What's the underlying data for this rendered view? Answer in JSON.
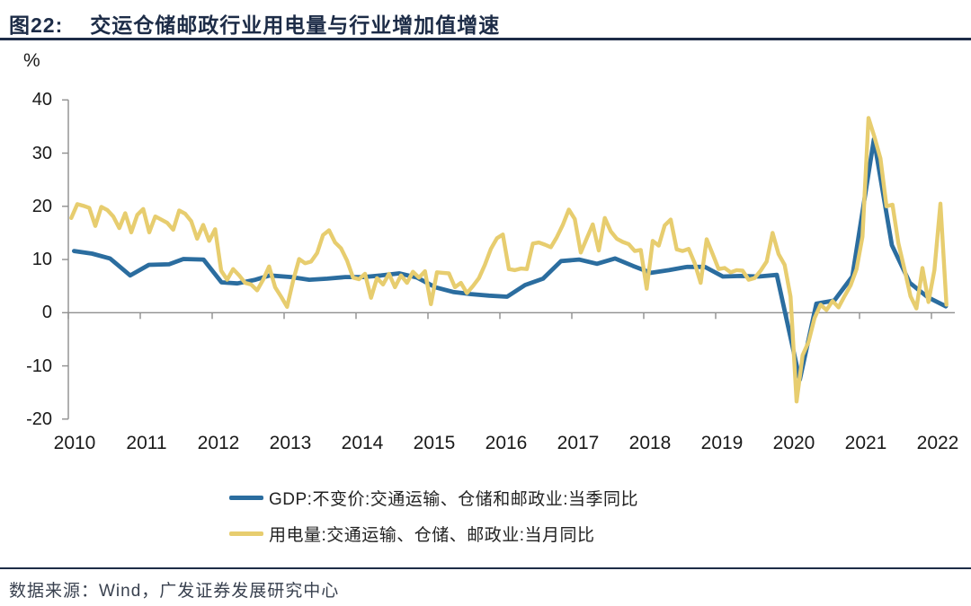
{
  "header": {
    "title_prefix": "图22:",
    "title": "交运仓储邮政行业用电量与行业增加值增速"
  },
  "chart": {
    "unit_label": "%"
  },
  "chart_data": {
    "type": "line",
    "title": "交运仓储邮政行业用电量与行业增加值增速",
    "grid": false,
    "legend_position": "bottom",
    "x_axis": {
      "min": 2010,
      "max": 2022.33,
      "tick_years": [
        2010,
        2011,
        2012,
        2013,
        2014,
        2015,
        2016,
        2017,
        2018,
        2019,
        2020,
        2021,
        2022
      ]
    },
    "y_axis": {
      "min": -20,
      "max": 40,
      "ticks": [
        40,
        30,
        20,
        10,
        0,
        -10,
        -20
      ],
      "unit": "%"
    },
    "series": [
      {
        "name": "GDP:不变价:交通运输、仓储和邮政业:当季同比",
        "color": "#2b6d9f",
        "frequency": "quarterly",
        "points": [
          [
            2010.08,
            11.6
          ],
          [
            2010.33,
            11.1
          ],
          [
            2010.58,
            10.2
          ],
          [
            2010.86,
            7.0
          ],
          [
            2011.12,
            9.0
          ],
          [
            2011.4,
            9.1
          ],
          [
            2011.6,
            10.1
          ],
          [
            2011.88,
            10.0
          ],
          [
            2012.13,
            5.7
          ],
          [
            2012.35,
            5.5
          ],
          [
            2012.6,
            6.2
          ],
          [
            2012.8,
            7.0
          ],
          [
            2013.1,
            6.7
          ],
          [
            2013.35,
            6.2
          ],
          [
            2013.6,
            6.4
          ],
          [
            2013.85,
            6.7
          ],
          [
            2014.1,
            6.7
          ],
          [
            2014.35,
            7.0
          ],
          [
            2014.6,
            7.4
          ],
          [
            2014.85,
            6.6
          ],
          [
            2015.1,
            4.8
          ],
          [
            2015.35,
            3.9
          ],
          [
            2015.6,
            3.5
          ],
          [
            2015.85,
            3.2
          ],
          [
            2016.1,
            3.0
          ],
          [
            2016.35,
            5.2
          ],
          [
            2016.6,
            6.4
          ],
          [
            2016.85,
            9.7
          ],
          [
            2017.1,
            10.0
          ],
          [
            2017.35,
            9.2
          ],
          [
            2017.6,
            10.2
          ],
          [
            2017.85,
            8.8
          ],
          [
            2018.1,
            7.5
          ],
          [
            2018.35,
            8.0
          ],
          [
            2018.6,
            8.6
          ],
          [
            2018.85,
            8.6
          ],
          [
            2019.1,
            6.8
          ],
          [
            2019.35,
            6.9
          ],
          [
            2019.6,
            6.8
          ],
          [
            2019.85,
            7.1
          ],
          [
            2020.17,
            -12.6
          ],
          [
            2020.4,
            1.7
          ],
          [
            2020.65,
            2.3
          ],
          [
            2020.9,
            6.8
          ],
          [
            2021.2,
            32.6
          ],
          [
            2021.45,
            12.7
          ],
          [
            2021.7,
            5.6
          ],
          [
            2021.95,
            2.9
          ],
          [
            2022.2,
            1.2
          ]
        ]
      },
      {
        "name": "用电量:交通运输、仓储、邮政业:当月同比",
        "color": "#e7cd6f",
        "frequency": "monthly",
        "start_year": 2010,
        "values": [
          17.8,
          20.4,
          20.1,
          19.7,
          16.3,
          19.9,
          19.3,
          18.1,
          15.9,
          18.7,
          15.1,
          18.4,
          19.5,
          15.1,
          18.1,
          17.5,
          16.9,
          15.6,
          19.2,
          18.6,
          17.2,
          13.9,
          16.5,
          13.5,
          15.7,
          7.9,
          6.2,
          8.2,
          7.0,
          5.6,
          5.3,
          4.2,
          6.2,
          8.7,
          4.8,
          3.0,
          1.1,
          6.0,
          10.1,
          9.3,
          9.6,
          11.2,
          14.6,
          15.5,
          13.2,
          12.1,
          9.8,
          6.6,
          6.3,
          7.3,
          2.8,
          6.5,
          5.3,
          7.3,
          4.8,
          7.0,
          5.6,
          7.7,
          6.6,
          7.8,
          1.6,
          7.6,
          7.5,
          7.4,
          4.8,
          5.6,
          3.7,
          5.0,
          6.5,
          9.0,
          12.0,
          14.0,
          14.7,
          8.2,
          8.0,
          8.3,
          8.2,
          13.0,
          13.2,
          12.8,
          12.3,
          14.2,
          16.5,
          19.4,
          17.6,
          11.3,
          14.0,
          16.6,
          11.7,
          17.8,
          15.3,
          13.9,
          13.3,
          12.9,
          11.6,
          11.8,
          4.5,
          13.5,
          12.6,
          16.4,
          17.5,
          11.9,
          11.6,
          12.0,
          9.3,
          5.6,
          13.8,
          11.0,
          8.2,
          8.4,
          7.6,
          8.0,
          7.9,
          6.2,
          6.5,
          7.9,
          9.6,
          15.0,
          11.0,
          9.0,
          3.0,
          -16.7,
          -8.0,
          -5.5,
          -1.0,
          1.5,
          0.5,
          2.2,
          1.0,
          3.1,
          5.1,
          8.2,
          14.3,
          36.6,
          33.0,
          29.0,
          20.0,
          20.3,
          13.0,
          8.2,
          3.1,
          0.8,
          8.4,
          2.0,
          8.0,
          20.5,
          1.5
        ]
      }
    ]
  },
  "legend": {
    "items": [
      {
        "label": "GDP:不变价:交通运输、仓储和邮政业:当季同比",
        "color": "#2b6d9f"
      },
      {
        "label": "用电量:交通运输、仓储、邮政业:当月同比",
        "color": "#e7cd6f"
      }
    ]
  },
  "footer": {
    "source": "数据来源：Wind，广发证券发展研究中心"
  },
  "style": {
    "axis_color": "#8f8f8f",
    "title_color": "#1d2c47"
  }
}
